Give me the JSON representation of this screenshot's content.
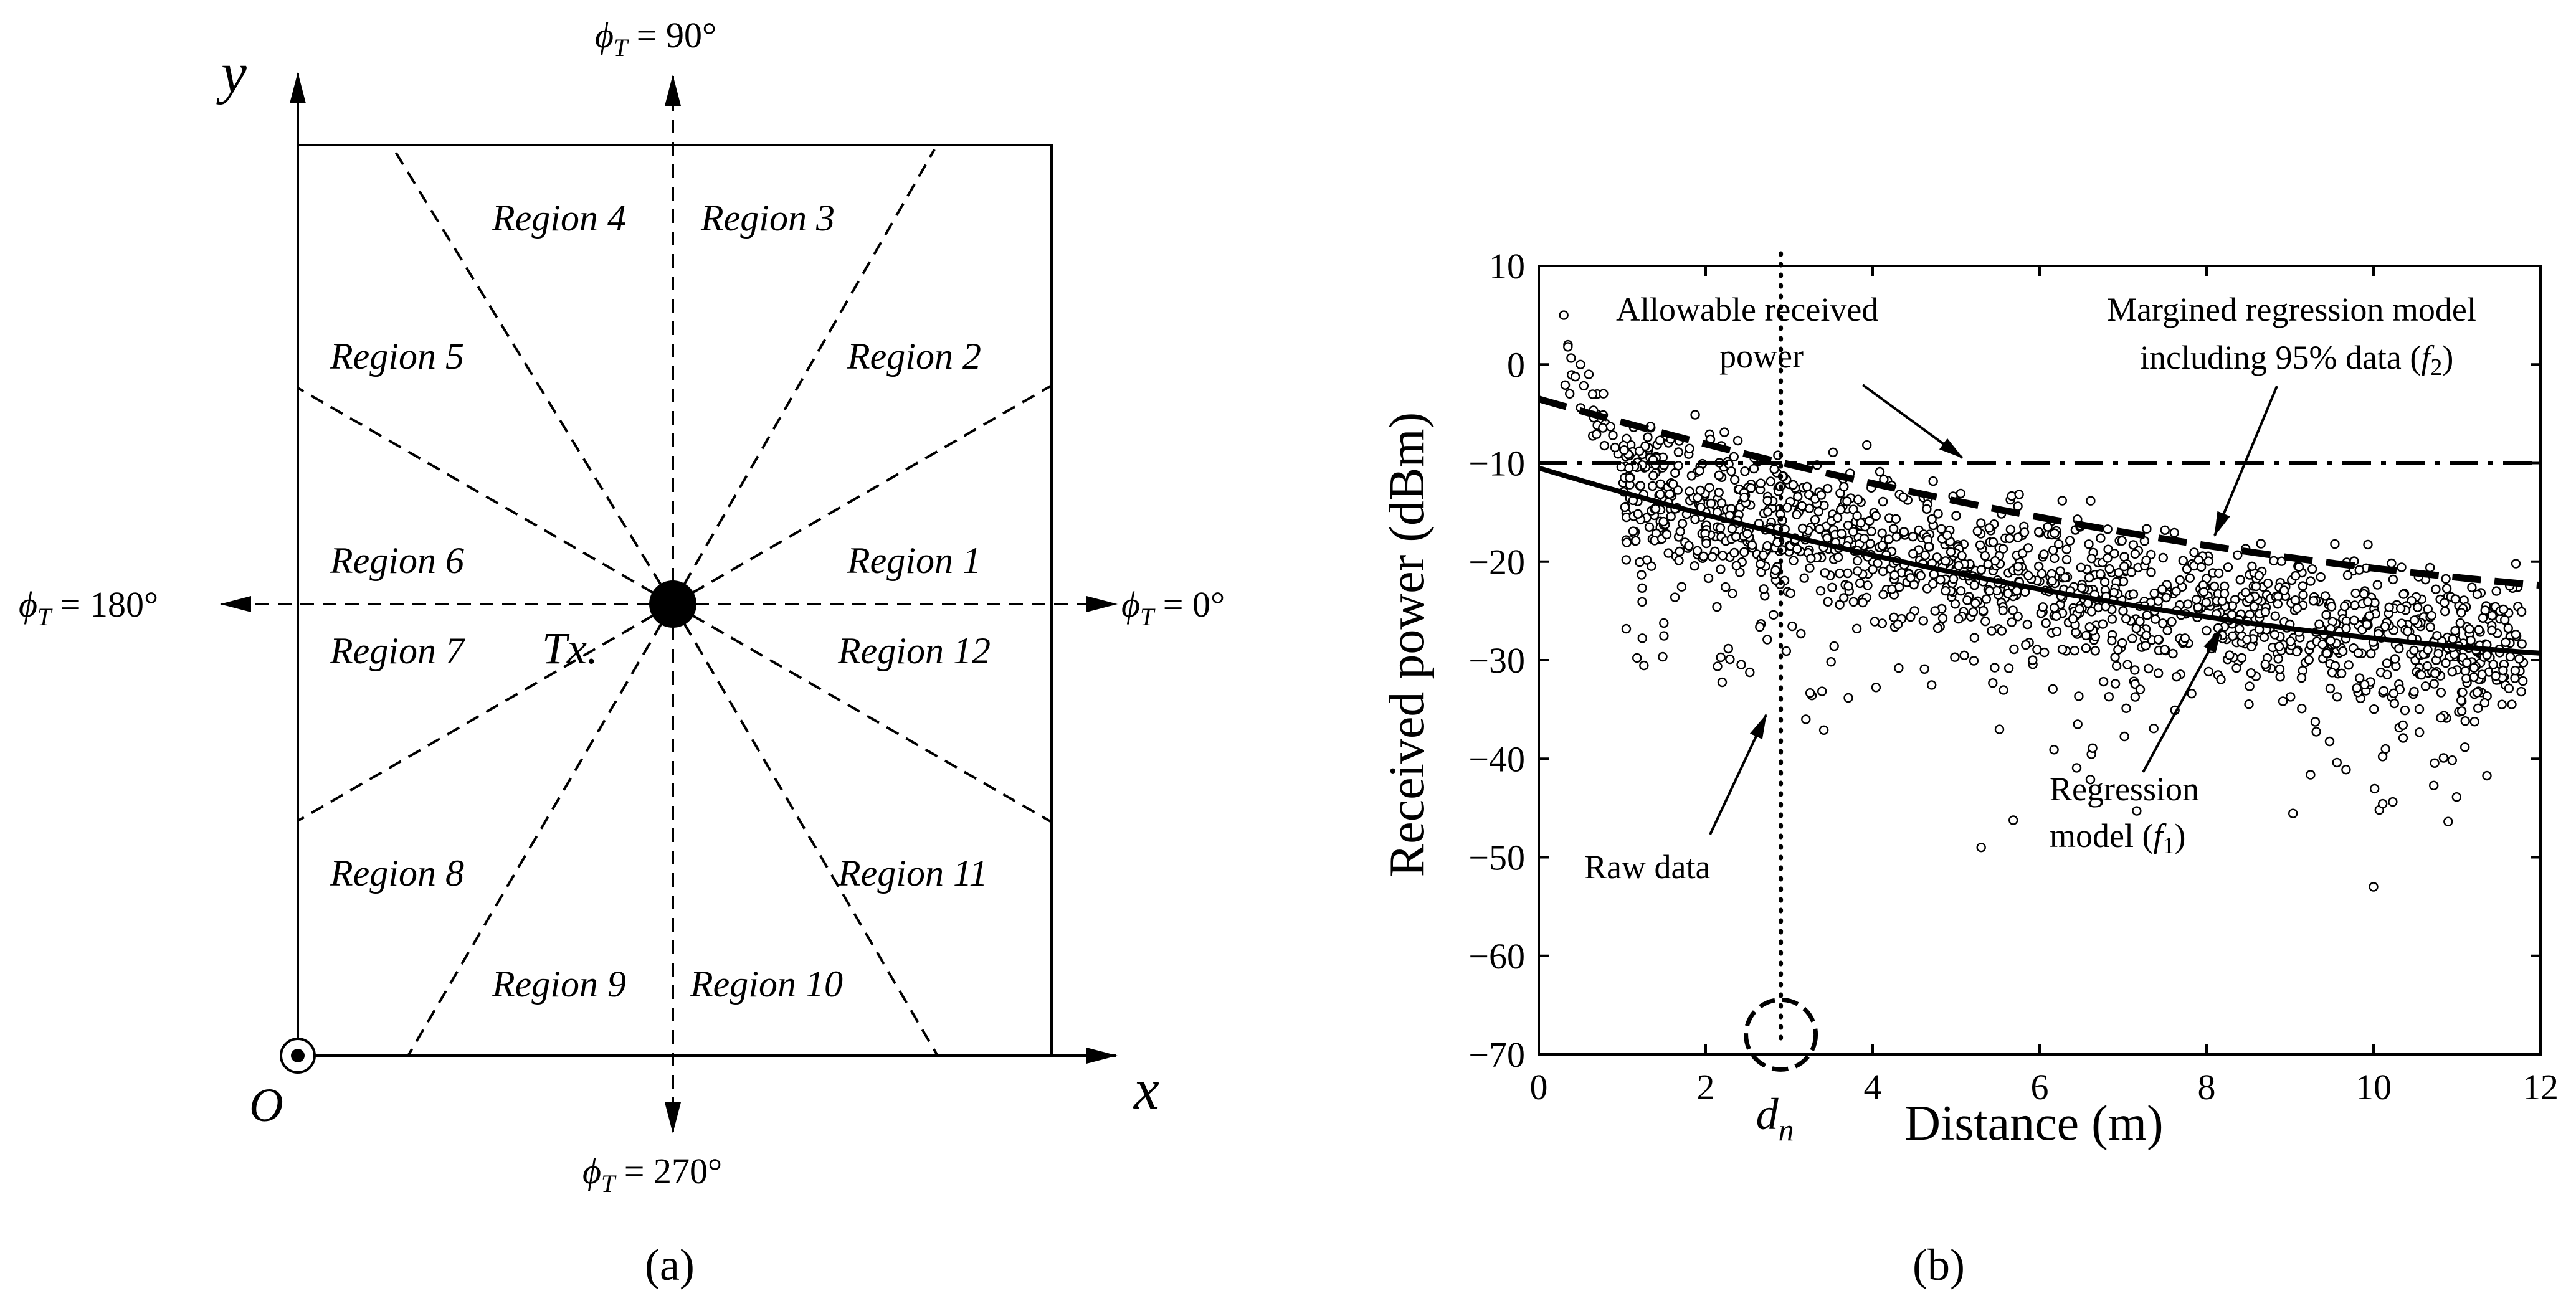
{
  "figure_a": {
    "caption": "(a)",
    "axis_x_label": "x",
    "axis_y_label": "y",
    "origin_label": "O",
    "tx_label": "Tx.",
    "phi_symbol": "ϕ",
    "phi_subscript": "T",
    "angle_labels": {
      "deg_90": " = 90°",
      "deg_0": " = 0°",
      "deg_180": " = 180°",
      "deg_270": " = 270°"
    },
    "regions": [
      "Region 1",
      "Region 2",
      "Region 3",
      "Region 4",
      "Region 5",
      "Region 6",
      "Region 7",
      "Region 8",
      "Region 9",
      "Region 10",
      "Region 11",
      "Region 12"
    ]
  },
  "figure_b": {
    "caption": "(b)",
    "annotations": {
      "allowable_line1": "Allowable received",
      "allowable_line2": "power",
      "margined_line1": "Margined regression model",
      "margined_line2_prefix": "including 95% data (",
      "margined_func": "f",
      "margined_sub": "2",
      "margined_suffix": ")",
      "regression_line1": "Regression",
      "regression_line2_prefix": "model (",
      "regression_func": "f",
      "regression_sub": "1",
      "regression_suffix": ")",
      "raw_data": "Raw data",
      "dn_main": "d",
      "dn_sub": "n"
    }
  },
  "chart_data": {
    "type": "scatter",
    "title": "",
    "xlabel": "Distance (m)",
    "ylabel": "Received power (dBm)",
    "xlim": [
      0,
      12
    ],
    "ylim": [
      -70,
      10
    ],
    "xticks": [
      0,
      2,
      4,
      6,
      8,
      10,
      12
    ],
    "yticks": [
      10,
      0,
      -10,
      -20,
      -30,
      -40,
      -50,
      -60,
      -70
    ],
    "xtick_labels": [
      "0",
      "2",
      "4",
      "6",
      "8",
      "10",
      "12"
    ],
    "ytick_labels": [
      "10",
      "0",
      "−10",
      "−20",
      "−30",
      "−40",
      "−50",
      "−60",
      "−70"
    ],
    "series": [
      {
        "name": "Raw data",
        "style": "open-circle markers",
        "sample_points": [
          [
            0.3,
            5
          ],
          [
            0.35,
            2
          ],
          [
            0.5,
            0
          ],
          [
            0.6,
            -1
          ],
          [
            0.7,
            -3
          ],
          [
            0.8,
            -6
          ],
          [
            1.0,
            -9
          ],
          [
            1.5,
            -13
          ],
          [
            2.0,
            -15
          ],
          [
            2.5,
            -18
          ],
          [
            3.0,
            -19
          ],
          [
            3.2,
            -36
          ],
          [
            4.0,
            -20
          ],
          [
            4.5,
            -25
          ],
          [
            5.3,
            -49
          ],
          [
            6.0,
            -22
          ],
          [
            7.0,
            -25
          ],
          [
            8.0,
            -27
          ],
          [
            9.0,
            -29
          ],
          [
            10.0,
            -53
          ],
          [
            10.5,
            -30
          ],
          [
            11.0,
            -31
          ],
          [
            11.5,
            -32
          ]
        ]
      },
      {
        "name": "Regression model (f1)",
        "style": "solid",
        "x": [
          0,
          2,
          4,
          6,
          8,
          10,
          12
        ],
        "y": [
          -10.5,
          -15.5,
          -19.5,
          -22.8,
          -25.5,
          -27.5,
          -29.3
        ]
      },
      {
        "name": "Margined regression model including 95% data (f2)",
        "style": "dashed",
        "x": [
          0,
          2,
          4,
          6,
          8,
          10,
          12
        ],
        "y": [
          -3.5,
          -9,
          -12.5,
          -15.5,
          -18.2,
          -20.5,
          -22.4
        ]
      },
      {
        "name": "Allowable received power",
        "style": "dash-dot",
        "x": [
          0,
          12
        ],
        "y": [
          -10,
          -10
        ]
      }
    ],
    "vertical_marker": {
      "label": "d_n",
      "x": 2.9
    }
  }
}
